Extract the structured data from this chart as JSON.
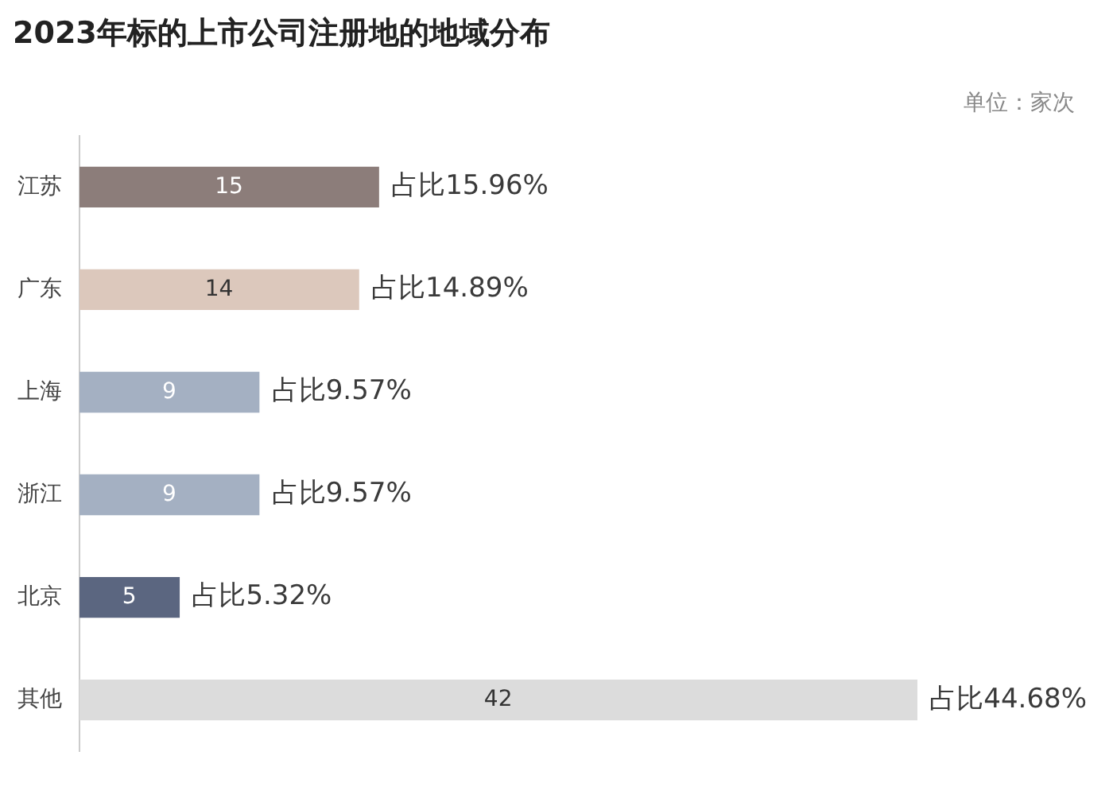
{
  "chart_data": {
    "type": "bar",
    "orientation": "horizontal",
    "title": "2023年标的上市公司注册地的地域分布",
    "categories": [
      "江苏",
      "广东",
      "上海",
      "浙江",
      "北京",
      "其他"
    ],
    "values": [
      15,
      14,
      9,
      9,
      5,
      42
    ],
    "colors": [
      "#8c7d7a",
      "#dcc8bc",
      "#a4b0c2",
      "#a4b0c2",
      "#5b6680",
      "#dcdcdc"
    ],
    "data_labels": true,
    "legend": false,
    "annotations": [
      "单位：家次",
      {
        "text": "占比15.96%",
        "x": 15,
        "y": "江苏"
      },
      {
        "text": "占比14.89%",
        "x": 14,
        "y": "广东"
      },
      {
        "text": "占比9.57%",
        "x": 9,
        "y": "上海"
      },
      {
        "text": "占比9.57%",
        "x": 9,
        "y": "浙江"
      },
      {
        "text": "占比5.32%",
        "x": 5,
        "y": "北京"
      },
      {
        "text": "占比44.68%",
        "x": 42,
        "y": "其他"
      }
    ]
  }
}
